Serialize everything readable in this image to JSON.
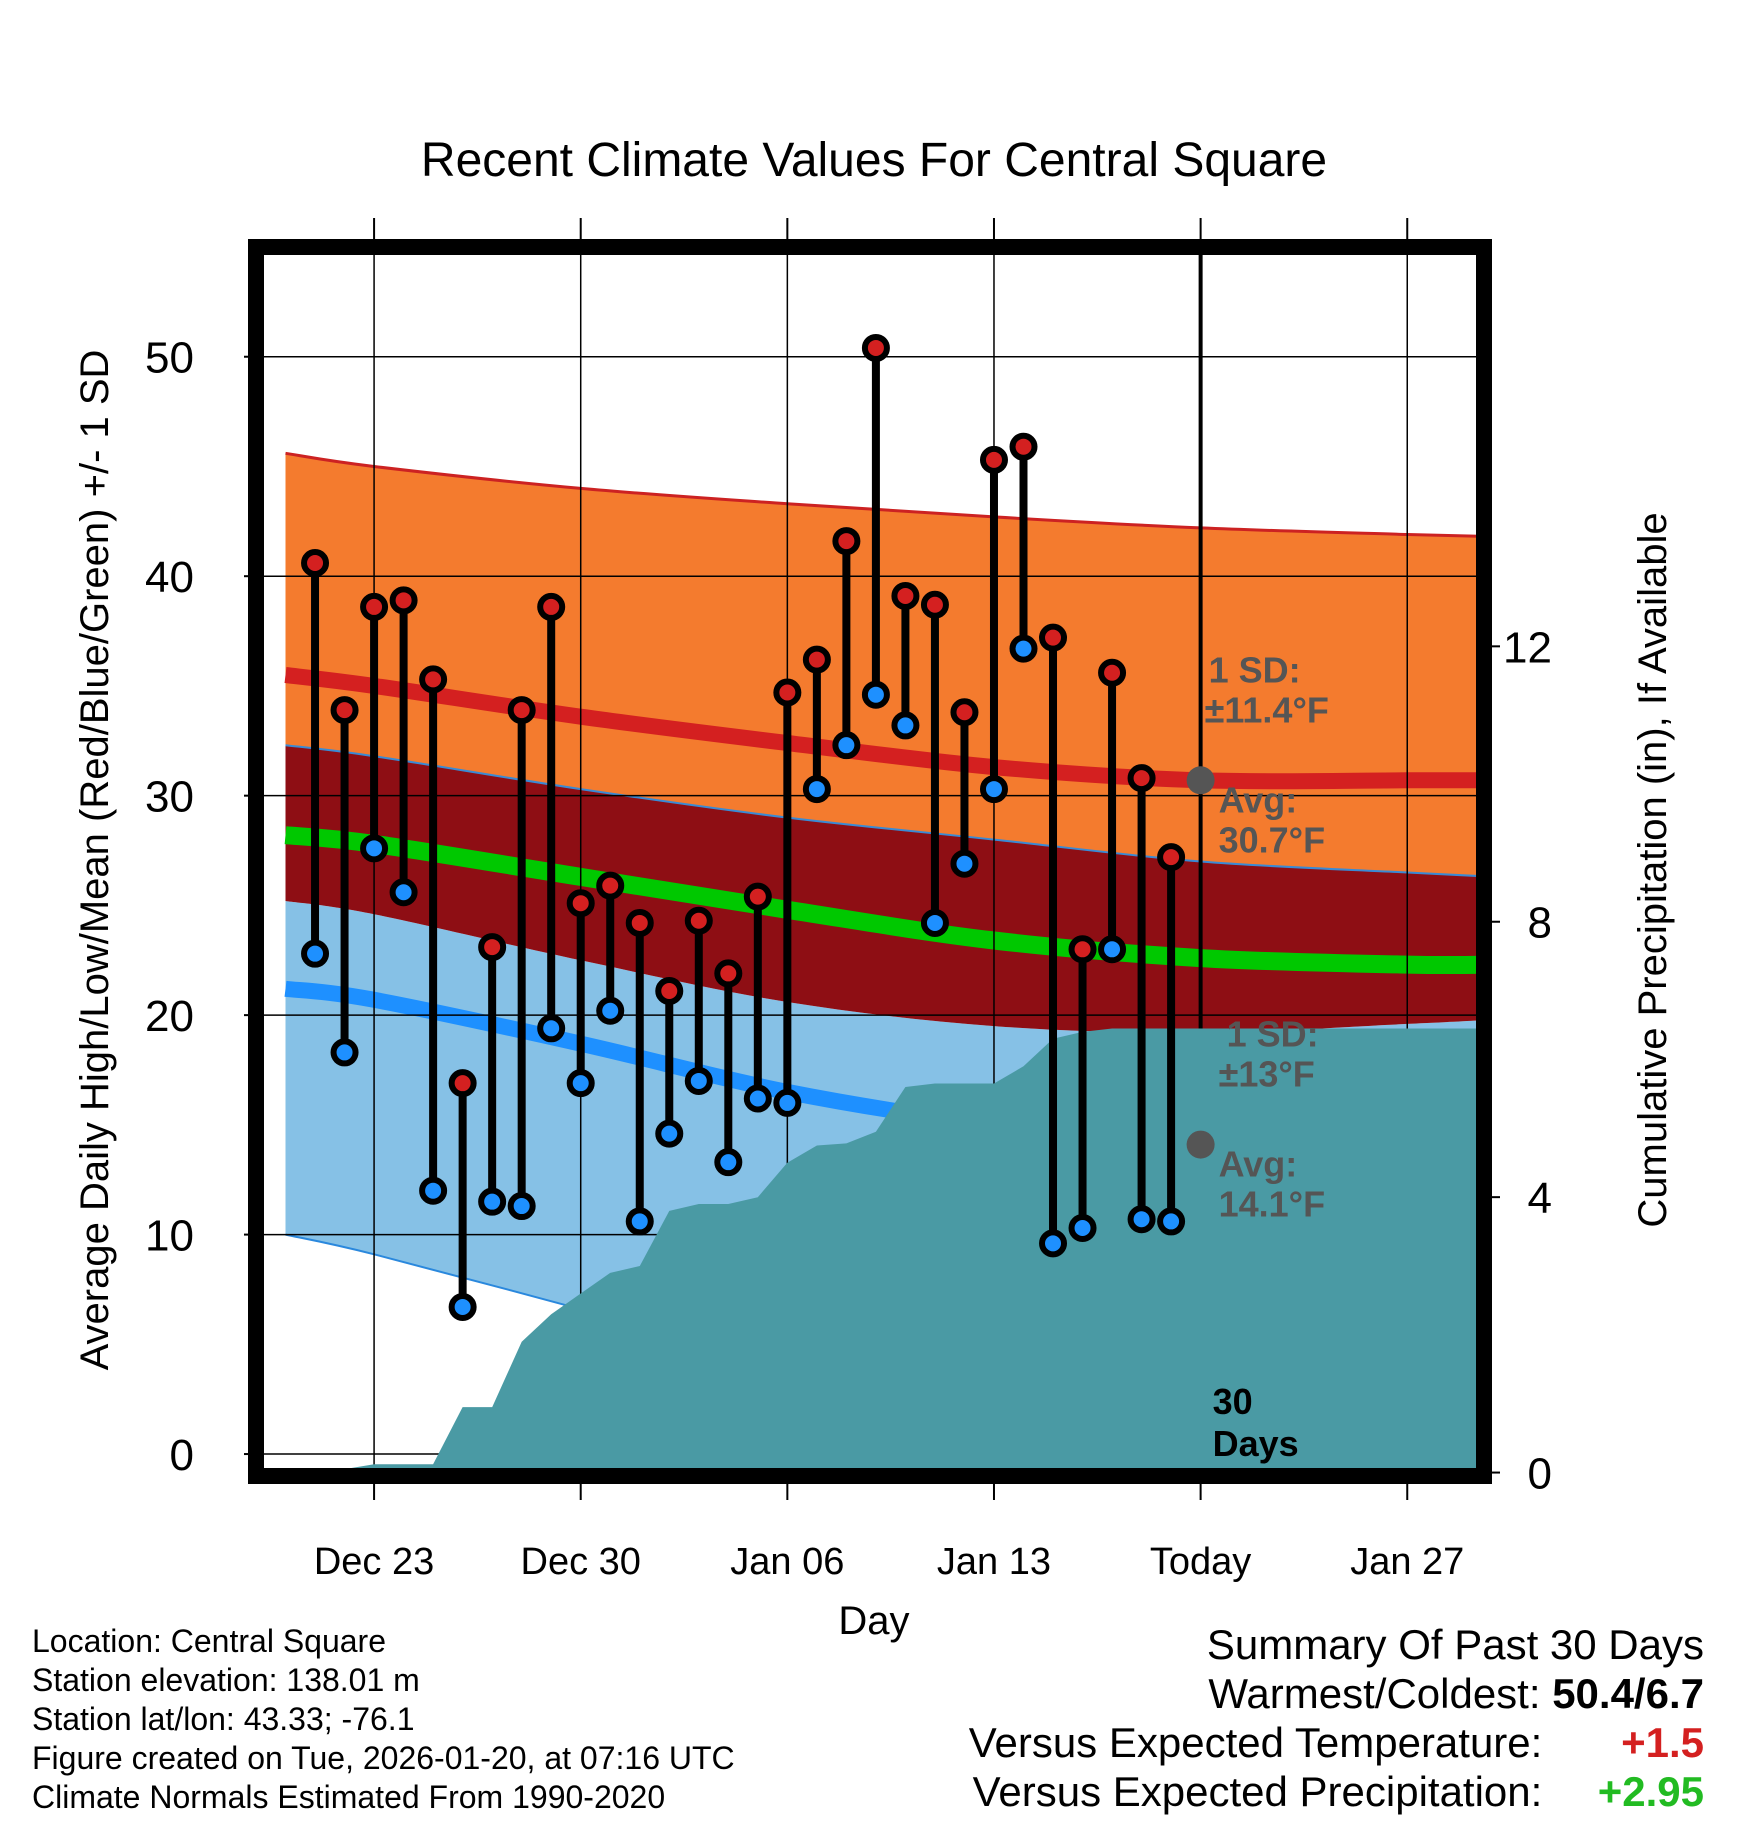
{
  "chart_data": {
    "type": "line",
    "title": "Recent Climate Values For Central Square",
    "xlabel": "Day",
    "ylabel": "Average Daily High/Low/Mean (Red/Blue/Green) +/- 1 SD",
    "y2label": "Cumulative Precipitation (in), If Available",
    "xlim": [
      -4,
      37.6
    ],
    "ylim": [
      -1,
      55
    ],
    "y2lim": [
      -0.05,
      17.8
    ],
    "x_ticks": [
      0,
      7,
      14,
      21,
      28,
      35
    ],
    "x_tick_labels": [
      "Dec 23",
      "Dec 30",
      "Jan 06",
      "Jan 13",
      "Today",
      "Jan 27"
    ],
    "y_ticks": [
      0,
      10,
      20,
      30,
      40,
      50
    ],
    "y2_ticks": [
      0,
      4,
      8,
      12
    ],
    "today_index": 28,
    "today_label": "30\nDays",
    "normals": {
      "days": [
        -3,
        0,
        7,
        14,
        21,
        28,
        35,
        38
      ],
      "high_plus_sd": [
        45.6,
        45.0,
        44.0,
        43.3,
        42.7,
        42.2,
        41.9,
        41.8
      ],
      "high_mean": [
        35.5,
        35.0,
        33.6,
        32.4,
        31.3,
        30.7,
        30.7,
        30.7
      ],
      "high_minus_sd": [
        32.3,
        31.8,
        30.3,
        29.0,
        28.0,
        27.0,
        26.5,
        26.3
      ],
      "mean_line": [
        28.2,
        27.8,
        26.3,
        24.8,
        23.4,
        22.6,
        22.3,
        22.3
      ],
      "low_plus_sd": [
        25.2,
        24.6,
        22.5,
        20.6,
        19.5,
        19.2,
        19.6,
        19.8
      ],
      "low_mean": [
        21.2,
        20.7,
        18.7,
        16.5,
        15.0,
        14.1,
        13.7,
        13.7
      ],
      "low_minus_sd": [
        10.0,
        9.1,
        6.6,
        4.0,
        2.0,
        1.2,
        0.9,
        0.8
      ]
    },
    "series": [
      {
        "name": "Daily High",
        "color": "#d42020",
        "days": [
          -2,
          -1,
          0,
          1,
          2,
          3,
          4,
          5,
          6,
          7,
          8,
          9,
          10,
          11,
          12,
          13,
          14,
          15,
          16,
          17,
          18,
          19,
          20,
          21,
          22,
          23,
          24,
          25,
          26,
          27
        ],
        "values": [
          40.6,
          33.9,
          38.6,
          38.9,
          35.3,
          16.9,
          23.1,
          33.9,
          38.6,
          25.1,
          25.9,
          24.2,
          21.1,
          24.3,
          21.9,
          25.4,
          34.7,
          36.2,
          41.6,
          50.4,
          39.1,
          38.7,
          33.8,
          45.3,
          45.9,
          37.2,
          23.0,
          35.6,
          30.8,
          27.2
        ]
      },
      {
        "name": "Daily Low",
        "color": "#1e90ff",
        "days": [
          -2,
          -1,
          0,
          1,
          2,
          3,
          4,
          5,
          6,
          7,
          8,
          9,
          10,
          11,
          12,
          13,
          14,
          15,
          16,
          17,
          18,
          19,
          20,
          21,
          22,
          23,
          24,
          25,
          26,
          27
        ],
        "values": [
          22.8,
          18.3,
          27.6,
          25.6,
          12.0,
          6.7,
          11.5,
          11.3,
          19.4,
          16.9,
          20.2,
          10.6,
          14.6,
          17.0,
          13.3,
          16.2,
          16.0,
          30.3,
          32.3,
          34.6,
          33.2,
          24.2,
          26.9,
          30.3,
          36.7,
          9.6,
          10.3,
          23.0,
          10.7,
          10.6
        ]
      },
      {
        "name": "Cumulative Precipitation",
        "color": "#4a9aa4",
        "axis": "right",
        "days": [
          -3,
          -2,
          -1,
          0,
          1,
          2,
          3,
          4,
          5,
          6,
          7,
          8,
          9,
          10,
          11,
          12,
          13,
          14,
          15,
          16,
          17,
          18,
          19,
          20,
          21,
          22,
          23,
          24,
          25,
          26,
          27,
          28,
          29,
          30,
          31,
          32,
          33,
          34,
          35,
          36,
          37,
          37.6
        ],
        "values": [
          0,
          0,
          0.05,
          0.12,
          0.12,
          0.12,
          0.95,
          0.95,
          1.9,
          2.3,
          2.6,
          2.9,
          3.0,
          3.8,
          3.9,
          3.9,
          4.0,
          4.5,
          4.75,
          4.78,
          4.95,
          5.6,
          5.65,
          5.65,
          5.65,
          5.9,
          6.3,
          6.4,
          6.45,
          6.45,
          6.45,
          6.45,
          6.45,
          6.45,
          6.45,
          6.45,
          6.45,
          6.45,
          6.45,
          6.45,
          6.45,
          6.45
        ]
      }
    ],
    "annotations": {
      "high_sd_label": "1 SD:",
      "high_sd_value": "±11.4°F",
      "high_avg_label": "Avg:",
      "high_avg_value": "30.7°F",
      "low_sd_label": "1 SD:",
      "low_sd_value": "±13°F",
      "low_avg_label": "Avg:",
      "low_avg_value": "14.1°F",
      "avg_high": 30.7,
      "avg_low": 14.1
    }
  },
  "info": {
    "location": "Location: Central Square",
    "elevation": "Station elevation: 138.01 m",
    "latlon": "Station lat/lon: 43.33; -76.1",
    "created": "Figure created on Tue, 2026-01-20, at 07:16 UTC",
    "normals": "Climate Normals Estimated From 1990-2020"
  },
  "summary": {
    "title": "Summary Of Past 30 Days",
    "warmest_label": "Warmest/Coldest:",
    "warmest_value": "50.4/6.7",
    "temp_label": "Versus Expected Temperature:",
    "temp_value": "+1.5",
    "temp_color": "#d42020",
    "precip_label": "Versus Expected Precipitation:",
    "precip_value": "+2.95",
    "precip_color": "#22bb22"
  },
  "colors": {
    "high_sd_band": "#f47b2e",
    "high_line": "#d42020",
    "inner_band": "#8e0e14",
    "mean_line": "#00c800",
    "low_sd_band": "#86c1e6",
    "low_line": "#1e90ff",
    "precip_fill": "#4a9aa4",
    "avg_marker": "#555555"
  }
}
